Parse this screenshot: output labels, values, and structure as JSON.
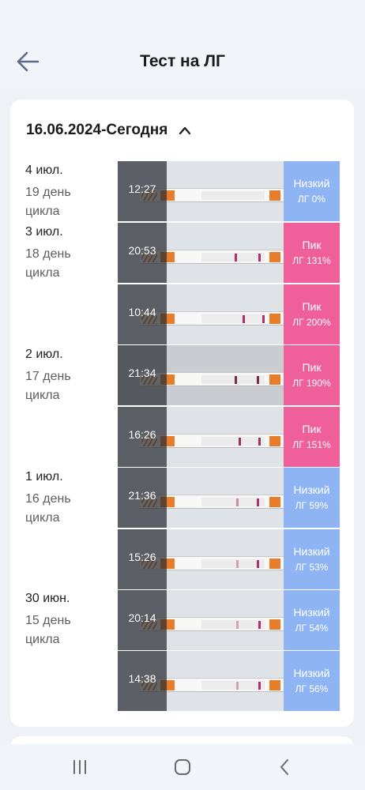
{
  "header": {
    "title": "Тест на ЛГ"
  },
  "card": {
    "range_label": "16.06.2024-Сегодня"
  },
  "days": [
    {
      "date": "4 июл.",
      "cycle": "19 день цикла"
    },
    {
      "date": "3 июл.",
      "cycle": "18 день цикла"
    },
    {
      "date": "2 июл.",
      "cycle": "17 день цикла"
    },
    {
      "date": "1 июл.",
      "cycle": "16 день цикла"
    },
    {
      "date": "30 июн.",
      "cycle": "15 день цикла"
    }
  ],
  "tests": [
    {
      "time": "12:27",
      "level": "Низкий",
      "lh": "ЛГ 0%"
    },
    {
      "time": "20:53",
      "level": "Пик",
      "lh": "ЛГ 131%"
    },
    {
      "time": "10:44",
      "level": "Пик",
      "lh": "ЛГ 200%"
    },
    {
      "time": "21:34",
      "level": "Пик",
      "lh": "ЛГ 190%"
    },
    {
      "time": "16:26",
      "level": "Пик",
      "lh": "ЛГ 151%"
    },
    {
      "time": "21:36",
      "level": "Низкий",
      "lh": "ЛГ 59%"
    },
    {
      "time": "15:26",
      "level": "Низкий",
      "lh": "ЛГ 53%"
    },
    {
      "time": "20:14",
      "level": "Низкий",
      "lh": "ЛГ 54%"
    },
    {
      "time": "14:38",
      "level": "Низкий",
      "lh": "ЛГ 56%"
    }
  ],
  "colors": {
    "low": "#8fb4f3",
    "peak": "#ef5f9a",
    "strip_orange": "#e77d2a",
    "test_line": "#b0306a"
  },
  "icons": {
    "back": "arrow-left-icon",
    "collapse": "chevron-up-icon",
    "nav_recents": "recents-icon",
    "nav_home": "home-icon",
    "nav_back": "nav-back-icon"
  }
}
